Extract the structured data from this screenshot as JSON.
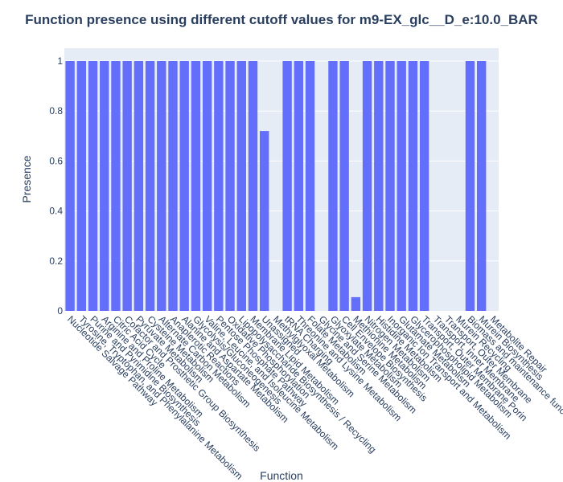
{
  "chart_data": {
    "type": "bar",
    "title": "Function presence using different cutoff values for m9-EX_glc__D_e:10.0_BAR",
    "xlabel": "Function",
    "ylabel": "Presence",
    "ylim": [
      0,
      1
    ],
    "yticks": [
      "0",
      "0.2",
      "0.4",
      "0.6",
      "0.8",
      "1"
    ],
    "grid": true,
    "bar_color": "#636efa",
    "plot_bgcolor": "#e5ecf6",
    "text_color": "#2a3f5f",
    "categories": [
      "Nucleotide Salvage Pathway",
      "Tyrosine, Tryptophan, and Phenylalanine Metabolism",
      "Purine and Pyrimidine Biosynthesis",
      "Arginine and Proline Metabolism",
      "Citric Acid Cycle",
      "Cofactor and Prosthetic Group Biosynthesis",
      "Pyruvate Metabolism",
      "Cysteine Metabolism",
      "Alternate Carbon Metabolism",
      "Anaplerotic Reactions",
      "Alanine and Aspartate Metabolism",
      "Glycolysis/Gluconeogenesis",
      "Valine, Leucine, and Isoleucine Metabolism",
      "Pentose Phosphate Pathway",
      "Oxidative Phosphorylation",
      "Lipopolysaccharide Biosynthesis / Recycling",
      "Membrane Lipid Metabolism",
      "Unassigned",
      "Methylglyoxal Metabolism",
      "tRNA Charging",
      "Threonine and Lysine Metabolism",
      "Folate Metabolism",
      "Glycine and Serine Metabolism",
      "Glyoxylate Metabolism",
      "Cell Envelope Biosynthesis",
      "Methionine Metabolism",
      "Nitrogen Metabolism",
      "Histidine Metabolism",
      "Inorganic Ion Transport and Metabolism",
      "Glutamate Metabolism",
      "Glycerophospholipid Metabolism",
      "Transport, Outer Membrane Porin",
      "Transport, Inner Membrane",
      "Transport, Outer Membrane",
      "Murein Recycling",
      "Biomass and maintenance functions",
      "Murein Biosynthesis",
      "Metabolite Repair"
    ],
    "values": [
      1,
      1,
      1,
      1,
      1,
      1,
      1,
      1,
      1,
      1,
      1,
      1,
      1,
      1,
      1,
      1,
      1,
      0.72,
      0,
      1,
      1,
      1,
      0,
      1,
      1,
      0.055,
      1,
      1,
      1,
      1,
      1,
      1,
      0,
      0,
      0,
      1,
      1,
      0
    ]
  }
}
